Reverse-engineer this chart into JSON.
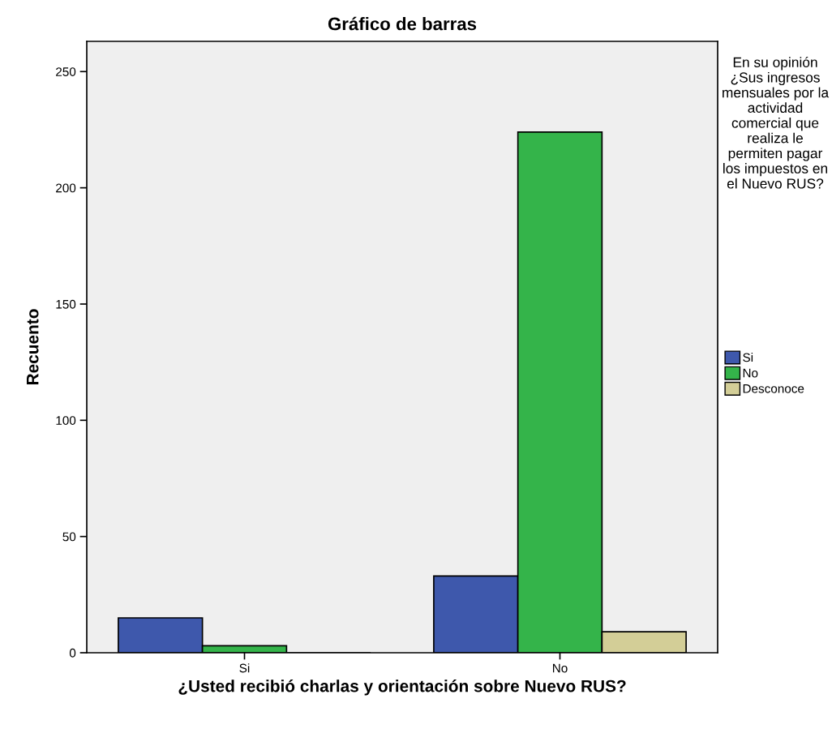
{
  "chart_data": {
    "type": "bar",
    "title": "Gráfico de barras",
    "xlabel": "¿Usted recibió charlas y orientación sobre Nuevo RUS?",
    "ylabel": "Recuento",
    "legend_title": "En su opinión ¿Sus ingresos mensuales por la actividad comercial que realiza le permiten pagar los impuestos en el Nuevo RUS?",
    "categories": [
      "Si",
      "No"
    ],
    "series": [
      {
        "name": "Si",
        "color": "#3e58ac",
        "values": [
          15,
          33
        ]
      },
      {
        "name": "No",
        "color": "#34b44a",
        "values": [
          3,
          224
        ]
      },
      {
        "name": "Desconoce",
        "color": "#d3ce97",
        "values": [
          0,
          9
        ]
      }
    ],
    "ylim": [
      0,
      263
    ],
    "yticks": [
      0,
      50,
      100,
      150,
      200,
      250
    ],
    "grid": false,
    "legend": "right"
  }
}
